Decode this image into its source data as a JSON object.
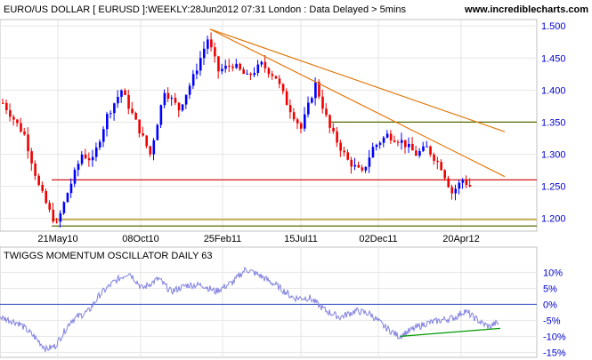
{
  "header": {
    "title": "EURO/US DOLLAR [ EURUSD ]:WEEKLY:28Jun2012 07:31 London : Data Delayed > 5mins",
    "site": "www.incrediblecharts.com"
  },
  "chart_data": [
    {
      "type": "candlestick",
      "title": "EURO/US DOLLAR [ EURUSD ]:WEEKLY:28Jun2012 07:31 London : Data Delayed > 5mins",
      "ylim": [
        1.18,
        1.51
      ],
      "y_ticks": [
        "1.500",
        "1.450",
        "1.400",
        "1.350",
        "1.300",
        "1.250",
        "1.200"
      ],
      "x_ticks": [
        "21May10",
        "08Oct10",
        "25Feb11",
        "15Jul11",
        "02Dec11",
        "20Apr12"
      ],
      "grid": true,
      "anchors": [
        [
          0,
          1.38
        ],
        [
          6,
          1.33
        ],
        [
          10,
          1.25
        ],
        [
          13,
          1.21
        ],
        [
          15,
          1.19
        ],
        [
          18,
          1.24
        ],
        [
          22,
          1.3
        ],
        [
          25,
          1.29
        ],
        [
          29,
          1.36
        ],
        [
          33,
          1.4
        ],
        [
          37,
          1.35
        ],
        [
          41,
          1.3
        ],
        [
          45,
          1.4
        ],
        [
          49,
          1.37
        ],
        [
          53,
          1.42
        ],
        [
          57,
          1.48
        ],
        [
          60,
          1.43
        ],
        [
          64,
          1.44
        ],
        [
          68,
          1.42
        ],
        [
          72,
          1.44
        ],
        [
          76,
          1.42
        ],
        [
          79,
          1.38
        ],
        [
          83,
          1.34
        ],
        [
          87,
          1.41
        ],
        [
          91,
          1.34
        ],
        [
          96,
          1.29
        ],
        [
          100,
          1.27
        ],
        [
          103,
          1.31
        ],
        [
          107,
          1.33
        ],
        [
          111,
          1.32
        ],
        [
          115,
          1.3
        ],
        [
          118,
          1.31
        ],
        [
          122,
          1.28
        ],
        [
          125,
          1.24
        ],
        [
          128,
          1.26
        ],
        [
          130,
          1.25
        ]
      ],
      "candle_count": 131,
      "horizontal_lines": [
        {
          "value": 1.26,
          "color": "#cc0000"
        },
        {
          "value": 1.35,
          "color": "#556b00"
        },
        {
          "value": 1.198,
          "color": "#aa8800"
        },
        {
          "value": 1.188,
          "color": "#556b00"
        }
      ],
      "trend_lines": [
        {
          "from": [
            58,
            1.495
          ],
          "to": [
            140,
            1.265
          ],
          "color": "#e07a10"
        },
        {
          "from": [
            58,
            1.495
          ],
          "to": [
            140,
            1.335
          ],
          "color": "#e07a10"
        }
      ],
      "colors": {
        "up": "#0000ff",
        "down": "#ee0000"
      }
    },
    {
      "type": "line",
      "title": "TWIGGS MOMENTUM OSCILLATOR DAILY 63",
      "ylim": [
        -16,
        14
      ],
      "y_ticks": [
        "10%",
        "5%",
        "0%",
        "-5%",
        "-10%",
        "-15%"
      ],
      "grid": true,
      "anchors": [
        [
          0,
          -4
        ],
        [
          12,
          -5
        ],
        [
          22,
          -6
        ],
        [
          38,
          -10
        ],
        [
          52,
          -14
        ],
        [
          62,
          -13
        ],
        [
          80,
          -5
        ],
        [
          100,
          -2
        ],
        [
          112,
          3
        ],
        [
          128,
          7
        ],
        [
          145,
          10
        ],
        [
          160,
          5
        ],
        [
          178,
          8
        ],
        [
          192,
          4
        ],
        [
          210,
          6
        ],
        [
          228,
          6
        ],
        [
          242,
          4
        ],
        [
          262,
          7
        ],
        [
          276,
          11
        ],
        [
          292,
          9
        ],
        [
          310,
          6
        ],
        [
          330,
          2
        ],
        [
          348,
          2
        ],
        [
          366,
          -2
        ],
        [
          382,
          -4
        ],
        [
          400,
          -2
        ],
        [
          416,
          -3
        ],
        [
          432,
          -7
        ],
        [
          448,
          -10
        ],
        [
          462,
          -8
        ],
        [
          478,
          -6
        ],
        [
          495,
          -5
        ],
        [
          512,
          -4
        ],
        [
          522,
          -2
        ],
        [
          532,
          -4
        ],
        [
          542,
          -6
        ],
        [
          550,
          -7
        ],
        [
          556,
          -6
        ],
        [
          560,
          -6
        ]
      ],
      "series_color": "#8080e0",
      "trend_line": {
        "from": [
          450,
          -10
        ],
        "to": [
          562,
          -7.5
        ],
        "color": "#009900"
      }
    }
  ]
}
